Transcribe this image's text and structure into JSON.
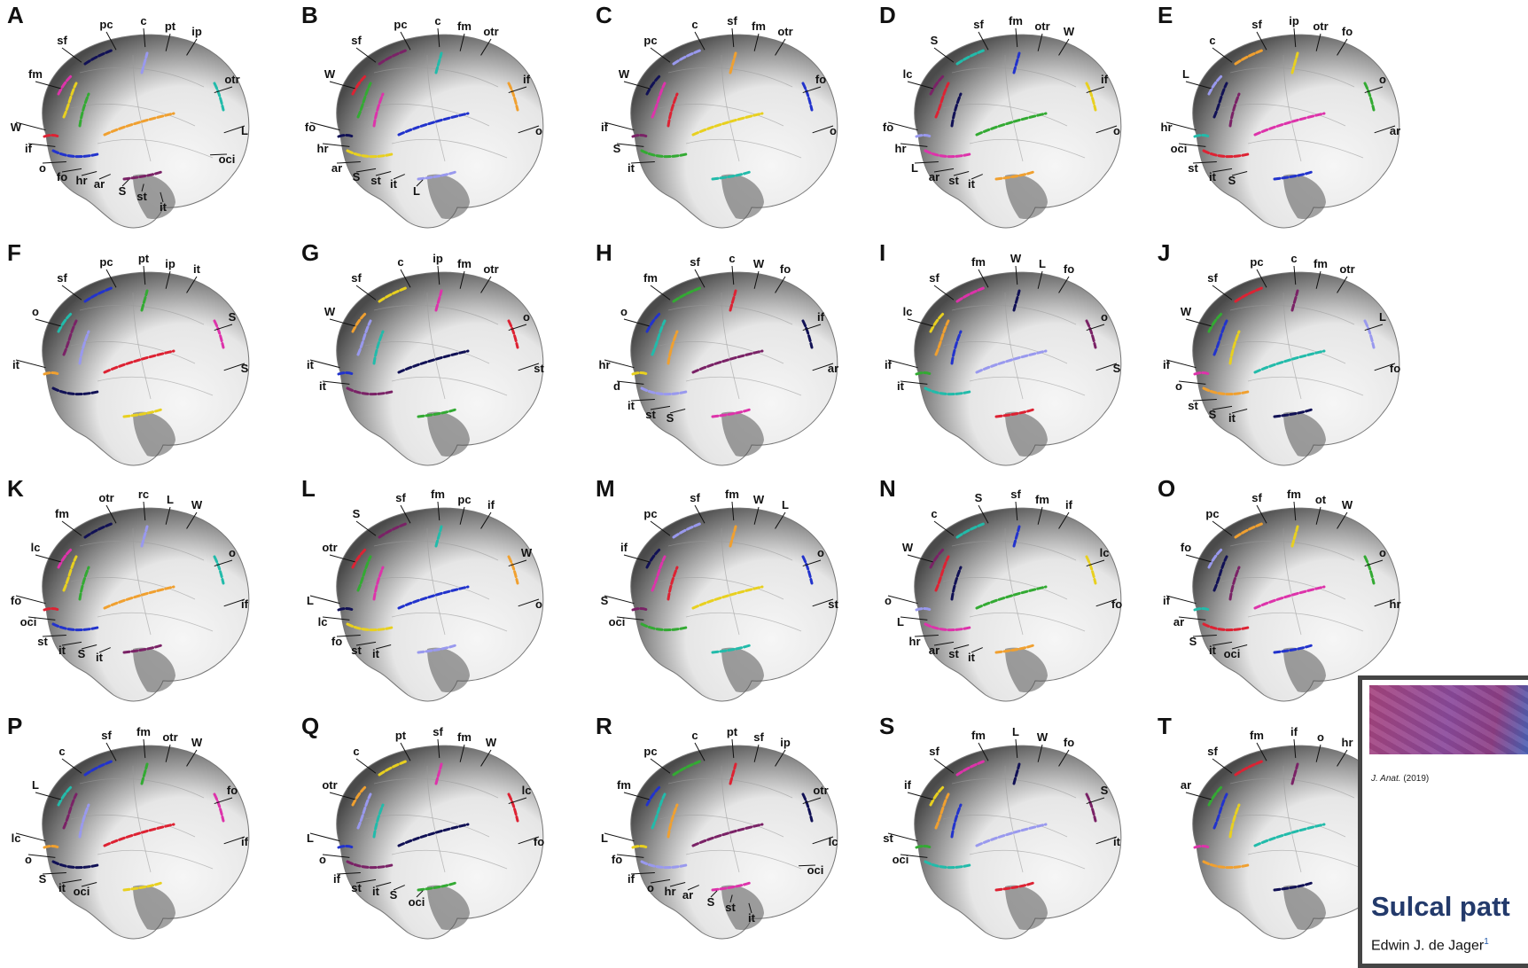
{
  "figure": {
    "panels": [
      {
        "letter": "A",
        "labels": [
          "sf",
          "pc",
          "c",
          "pt",
          "ip",
          "fm",
          "otr",
          "W",
          "L",
          "if",
          "o",
          "fo",
          "hr",
          "ar",
          "S",
          "st",
          "it",
          "oci"
        ]
      },
      {
        "letter": "B",
        "labels": [
          "sf",
          "pc",
          "c",
          "fm",
          "otr",
          "W",
          "if",
          "fo",
          "o",
          "hr",
          "ar",
          "S",
          "st",
          "it",
          "L"
        ]
      },
      {
        "letter": "C",
        "labels": [
          "pc",
          "c",
          "sf",
          "fm",
          "otr",
          "W",
          "fo",
          "if",
          "o",
          "S",
          "it"
        ]
      },
      {
        "letter": "D",
        "labels": [
          "S",
          "sf",
          "fm",
          "otr",
          "W",
          "lc",
          "if",
          "fo",
          "o",
          "hr",
          "L",
          "ar",
          "st",
          "it"
        ]
      },
      {
        "letter": "E",
        "labels": [
          "c",
          "sf",
          "ip",
          "otr",
          "fo",
          "L",
          "o",
          "hr",
          "ar",
          "oci",
          "st",
          "it",
          "S"
        ]
      },
      {
        "letter": "F",
        "labels": [
          "sf",
          "pc",
          "pt",
          "ip",
          "it",
          "o",
          "S",
          "it",
          "S"
        ]
      },
      {
        "letter": "G",
        "labels": [
          "sf",
          "c",
          "ip",
          "fm",
          "otr",
          "W",
          "o",
          "it",
          "st",
          "it"
        ]
      },
      {
        "letter": "H",
        "labels": [
          "fm",
          "sf",
          "c",
          "W",
          "fo",
          "o",
          "if",
          "hr",
          "ar",
          "d",
          "it",
          "st",
          "S"
        ]
      },
      {
        "letter": "I",
        "labels": [
          "sf",
          "fm",
          "W",
          "L",
          "fo",
          "lc",
          "o",
          "if",
          "S",
          "it"
        ]
      },
      {
        "letter": "J",
        "labels": [
          "sf",
          "pc",
          "c",
          "fm",
          "otr",
          "W",
          "L",
          "if",
          "fo",
          "o",
          "st",
          "S",
          "it"
        ]
      },
      {
        "letter": "K",
        "labels": [
          "fm",
          "otr",
          "rc",
          "L",
          "W",
          "lc",
          "o",
          "fo",
          "if",
          "oci",
          "st",
          "it",
          "S",
          "it"
        ]
      },
      {
        "letter": "L",
        "labels": [
          "S",
          "sf",
          "fm",
          "pc",
          "if",
          "otr",
          "W",
          "L",
          "o",
          "lc",
          "fo",
          "st",
          "it"
        ]
      },
      {
        "letter": "M",
        "labels": [
          "pc",
          "sf",
          "fm",
          "W",
          "L",
          "if",
          "o",
          "S",
          "st",
          "oci"
        ]
      },
      {
        "letter": "N",
        "labels": [
          "c",
          "S",
          "sf",
          "fm",
          "if",
          "W",
          "lc",
          "o",
          "fo",
          "L",
          "hr",
          "ar",
          "st",
          "it"
        ]
      },
      {
        "letter": "O",
        "labels": [
          "pc",
          "sf",
          "fm",
          "ot",
          "W",
          "fo",
          "o",
          "if",
          "hr",
          "ar",
          "S",
          "it",
          "oci"
        ]
      },
      {
        "letter": "P",
        "labels": [
          "c",
          "sf",
          "fm",
          "otr",
          "W",
          "L",
          "fo",
          "lc",
          "if",
          "o",
          "S",
          "it",
          "oci"
        ]
      },
      {
        "letter": "Q",
        "labels": [
          "c",
          "pt",
          "sf",
          "fm",
          "W",
          "otr",
          "lc",
          "L",
          "fo",
          "o",
          "if",
          "st",
          "it",
          "S",
          "oci"
        ]
      },
      {
        "letter": "R",
        "labels": [
          "pc",
          "c",
          "pt",
          "sf",
          "ip",
          "fm",
          "otr",
          "L",
          "lc",
          "fo",
          "if",
          "o",
          "hr",
          "ar",
          "S",
          "st",
          "it",
          "oci"
        ]
      },
      {
        "letter": "S",
        "labels": [
          "sf",
          "fm",
          "L",
          "W",
          "fo",
          "if",
          "S",
          "st",
          "it",
          "oci"
        ]
      },
      {
        "letter": "T",
        "labels": [
          "sf",
          "fm",
          "if",
          "o",
          "hr",
          "ar"
        ]
      }
    ]
  },
  "overlay": {
    "journal_name": "J. Anat.",
    "journal_year": "(2019)",
    "title_fragment": "Sulcal patt",
    "authors_fragment": "Edwin J. de Jager",
    "authors_sup": "1"
  },
  "colors": {
    "brain_dark": "#4a4a4a",
    "brain_light": "#e6e6e6",
    "sulcus_orange": "#f0a030",
    "sulcus_blue": "#2233cc",
    "sulcus_yellow": "#e8d020",
    "sulcus_green": "#33aa33",
    "sulcus_magenta": "#dd33aa",
    "sulcus_red": "#dd2233",
    "sulcus_navy": "#111155",
    "sulcus_purple": "#7a2266",
    "sulcus_lavender": "#9999ee",
    "sulcus_teal": "#22bbaa"
  }
}
